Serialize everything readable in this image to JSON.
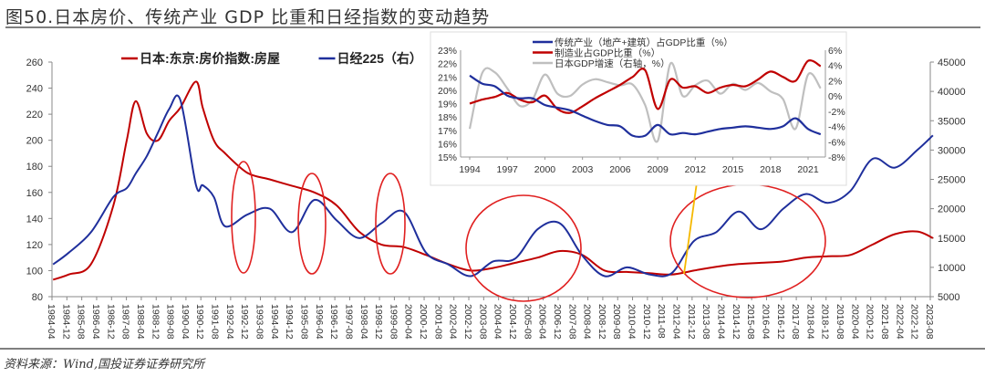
{
  "title": "图50.日本房价、传统产业 GDP 比重和日经指数的变动趋势",
  "source": "资料来源：Wind,国投证券证券研究所",
  "colors": {
    "red": "#c00000",
    "blue": "#1f2f9c",
    "gray": "#bfbfbf",
    "annotation_red": "#e02020",
    "arrow": "#f5b800"
  },
  "chart_data": [
    {
      "type": "line",
      "legend_position": "top",
      "y_left": {
        "ylim": [
          80,
          260
        ],
        "ticks": [
          "80",
          "100",
          "120",
          "140",
          "160",
          "180",
          "200",
          "220",
          "240",
          "260"
        ]
      },
      "y_right": {
        "ylim": [
          5000,
          45000
        ],
        "ticks": [
          "5000",
          "10000",
          "15000",
          "20000",
          "25000",
          "30000",
          "35000",
          "40000",
          "45000"
        ]
      },
      "x_tick_labels": [
        "1984-04",
        "1984-12",
        "1985-08",
        "1986-04",
        "1986-12",
        "1987-08",
        "1988-04",
        "1988-12",
        "1989-08",
        "1990-04",
        "1990-12",
        "1991-08",
        "1992-04",
        "1992-12",
        "1993-08",
        "1994-04",
        "1994-12",
        "1995-08",
        "1996-04",
        "1996-12",
        "1997-08",
        "1998-04",
        "1998-12",
        "1999-08",
        "2000-04",
        "2000-12",
        "2001-08",
        "2002-04",
        "2002-12",
        "2003-08",
        "2004-04",
        "2004-12",
        "2005-08",
        "2006-04",
        "2006-12",
        "2007-08",
        "2008-04",
        "2008-12",
        "2009-08",
        "2010-04",
        "2010-12",
        "2011-08",
        "2012-04",
        "2012-12",
        "2013-08",
        "2014-04",
        "2014-12",
        "2015-08",
        "2016-04",
        "2016-12",
        "2017-08",
        "2018-04",
        "2018-12",
        "2019-08",
        "2020-04",
        "2020-12",
        "2021-08",
        "2022-04",
        "2022-12",
        "2023-08"
      ],
      "x": [
        1984.3,
        1985,
        1986,
        1987,
        1987.6,
        1988,
        1988.5,
        1989,
        1989.5,
        1990,
        1990.7,
        1991,
        1991.5,
        1992,
        1993,
        1994,
        1995,
        1996,
        1997,
        1998,
        1999,
        2000,
        2001,
        2002,
        2003,
        2004,
        2005,
        2006,
        2007,
        2008,
        2009,
        2010,
        2011,
        2012,
        2013,
        2014,
        2015,
        2016,
        2017,
        2018,
        2019,
        2020,
        2021,
        2022,
        2023,
        2023.7
      ],
      "series": [
        {
          "name": "日本:东京:房价指数:房屋",
          "axis": "left",
          "color": "#c00000",
          "values": [
            93,
            97,
            105,
            150,
            200,
            230,
            205,
            200,
            215,
            225,
            245,
            225,
            200,
            190,
            175,
            170,
            165,
            160,
            150,
            130,
            120,
            118,
            112,
            105,
            100,
            102,
            106,
            110,
            115,
            112,
            100,
            99,
            98,
            97,
            100,
            103,
            105,
            106,
            107,
            110,
            111,
            112,
            120,
            128,
            130,
            125
          ]
        },
        {
          "name": "日经225（右）",
          "axis": "right",
          "color": "#1f2f9c",
          "values": [
            10500,
            12500,
            16000,
            22000,
            23500,
            26000,
            29000,
            33000,
            37000,
            38500,
            24000,
            24000,
            22000,
            17000,
            19000,
            20000,
            16000,
            21500,
            18000,
            15000,
            17500,
            19500,
            12500,
            10500,
            8500,
            11000,
            11500,
            16500,
            17500,
            12000,
            8500,
            10000,
            8800,
            9000,
            14500,
            16000,
            19500,
            16500,
            20000,
            22500,
            21000,
            23000,
            28500,
            27000,
            30000,
            32500
          ]
        }
      ]
    },
    {
      "type": "line",
      "legend_position": "top",
      "x": [
        1994,
        1995,
        1996,
        1997,
        1998,
        1999,
        2000,
        2001,
        2002,
        2003,
        2004,
        2005,
        2006,
        2007,
        2008,
        2009,
        2010,
        2011,
        2012,
        2013,
        2014,
        2015,
        2016,
        2017,
        2018,
        2019,
        2020,
        2021,
        2022
      ],
      "x_tick_labels": [
        "1994",
        "1997",
        "2000",
        "2003",
        "2006",
        "2009",
        "2012",
        "2015",
        "2018",
        "2021"
      ],
      "y_left": {
        "ylim": [
          15,
          23
        ],
        "ticks": [
          "15%",
          "16%",
          "17%",
          "18%",
          "19%",
          "20%",
          "21%",
          "22%",
          "23%"
        ]
      },
      "y_right": {
        "ylim": [
          -8,
          6
        ],
        "ticks": [
          "-8%",
          "-6%",
          "-4%",
          "-2%",
          "0%",
          "2%",
          "4%",
          "6%"
        ]
      },
      "series": [
        {
          "name": "传统产业（地产+建筑）占GDP比重（%）",
          "axis": "left",
          "color": "#1f2f9c",
          "values": [
            21.1,
            20.5,
            20.3,
            19.6,
            19.4,
            19.4,
            18.9,
            18.7,
            18.5,
            18.1,
            17.7,
            17.4,
            17.3,
            16.6,
            16.6,
            17.4,
            16.7,
            16.8,
            16.7,
            16.9,
            17.1,
            17.2,
            17.3,
            17.2,
            17.1,
            17.3,
            17.9,
            17.1,
            16.7
          ]
        },
        {
          "name": "制造业占GDP比重（%）",
          "axis": "left",
          "color": "#c00000",
          "values": [
            19.0,
            19.3,
            19.5,
            19.8,
            19.3,
            19.1,
            19.6,
            18.6,
            18.3,
            18.8,
            19.4,
            19.9,
            20.4,
            21.0,
            21.5,
            18.6,
            20.8,
            20.2,
            20.3,
            19.8,
            20.2,
            20.4,
            20.3,
            20.8,
            21.4,
            21.0,
            20.7,
            22.2,
            21.8
          ]
        },
        {
          "name": "日本GDP增速（右轴，%）",
          "axis": "right",
          "color": "#bfbfbf",
          "values": [
            -4.3,
            3.0,
            3.1,
            1.0,
            -1.3,
            -0.5,
            2.8,
            0.3,
            0.0,
            1.5,
            2.2,
            1.8,
            1.4,
            1.5,
            -1.2,
            -5.9,
            4.2,
            0.0,
            1.4,
            2.0,
            0.3,
            1.6,
            0.8,
            1.7,
            0.6,
            -0.4,
            -4.3,
            2.8,
            1.0
          ]
        }
      ]
    }
  ]
}
